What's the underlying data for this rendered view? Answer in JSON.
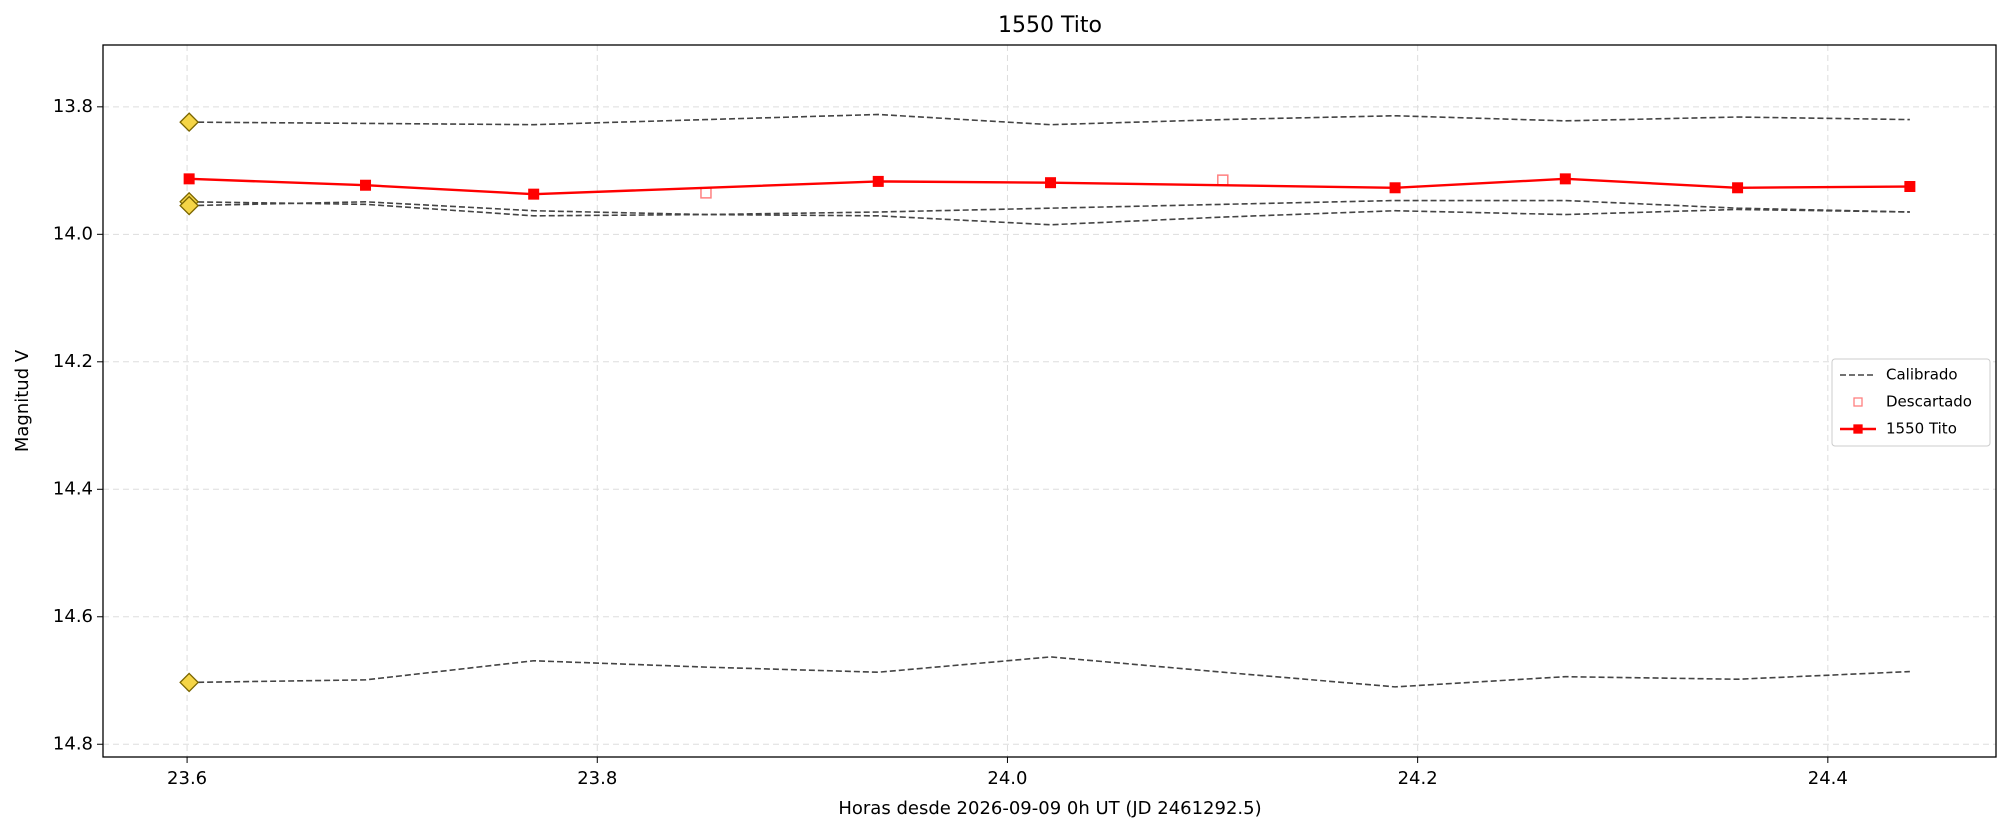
{
  "chart_data": {
    "type": "line",
    "title": "1550 Tito",
    "x_label": "Horas desde 2026-09-09 0h UT (JD 2461292.5)",
    "y_label": "Magnitud V",
    "xlim": [
      23.559,
      24.482
    ],
    "ylim": [
      13.703,
      14.82
    ],
    "y_inverted": true,
    "grid": true,
    "legend": "center right",
    "xticks": [
      23.6,
      23.8,
      {
        "value": 24,
        "label": "24.0"
      },
      24.2,
      24.4
    ],
    "yticks": [
      13.8,
      {
        "value": 14,
        "label": "14.0"
      },
      14.2,
      14.4,
      14.6,
      14.8
    ],
    "series": [
      {
        "name": "Calibrado",
        "style": "dashed",
        "color": "#444444",
        "first_marker": "diamond",
        "x": [
          23.601,
          23.687,
          23.769,
          23.853,
          23.937,
          24.021,
          24.105,
          24.189,
          24.272,
          24.356,
          24.44
        ],
        "values": [
          13.824,
          13.826,
          13.828,
          13.82,
          13.812,
          13.828,
          13.82,
          13.814,
          13.822,
          13.816,
          13.82
        ]
      },
      {
        "style": "dashed",
        "color": "#444444",
        "first_marker": "diamond",
        "x": [
          23.601,
          23.687,
          23.769,
          23.853,
          23.937,
          24.021,
          24.105,
          24.189,
          24.272,
          24.356,
          24.44
        ],
        "values": [
          13.949,
          13.953,
          13.971,
          13.969,
          13.965,
          13.959,
          13.953,
          13.947,
          13.947,
          13.959,
          13.965
        ]
      },
      {
        "style": "dashed",
        "color": "#444444",
        "first_marker": "diamond",
        "x": [
          23.601,
          23.687,
          23.769,
          23.853,
          23.937,
          24.021,
          24.105,
          24.189,
          24.272,
          24.356,
          24.44
        ],
        "values": [
          13.955,
          13.949,
          13.963,
          13.969,
          13.971,
          13.985,
          13.973,
          13.963,
          13.969,
          13.961,
          13.965
        ]
      },
      {
        "style": "dashed",
        "color": "#444444",
        "first_marker": "diamond",
        "x": [
          23.601,
          23.687,
          23.769,
          23.853,
          23.937,
          24.021,
          24.105,
          24.189,
          24.272,
          24.356,
          24.44
        ],
        "values": [
          14.703,
          14.699,
          14.669,
          14.679,
          14.687,
          14.663,
          14.687,
          14.71,
          14.694,
          14.698,
          14.686
        ]
      },
      {
        "name": "Descartado",
        "style": "hollow-squares",
        "color": "#ff8080",
        "x": [
          23.853,
          24.105
        ],
        "values": [
          13.935,
          13.915
        ]
      },
      {
        "name": "1550 Tito",
        "style": "line-squares",
        "color": "#ff0000",
        "x": [
          23.601,
          23.687,
          23.769,
          23.937,
          24.021,
          24.189,
          24.272,
          24.356,
          24.44
        ],
        "values": [
          13.913,
          13.923,
          13.937,
          13.917,
          13.919,
          13.927,
          13.913,
          13.927,
          13.925
        ]
      }
    ]
  }
}
